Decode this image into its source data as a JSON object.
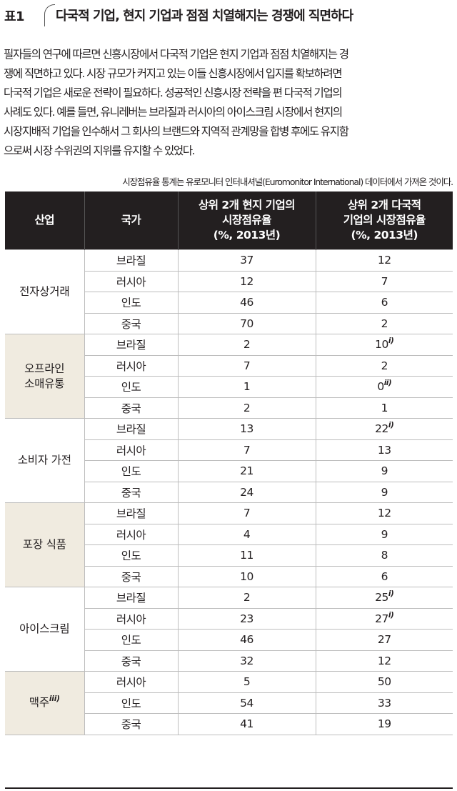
{
  "header": {
    "label": "표1",
    "title": "다국적 기업, 현지 기업과 점점 치열해지는 경쟁에 직면하다"
  },
  "intro_lines": [
    "필자들의 연구에 따르면 신흥시장에서 다국적 기업은 현지 기업과 점점 치열해지는 경",
    "쟁에 직면하고 있다. 시장 규모가 커지고 있는 이들 신흥시장에서 입지를 확보하려면",
    "다국적 기업은 새로운 전략이 필요하다. 성공적인 신흥시장 전략을 편 다국적 기업의",
    "사례도 있다. 예를 들면, 유니레버는 브라질과 러시아의 아이스크림 시장에서 현지의",
    "시장지배적 기업을 인수해서 그 회사의 브랜드와 지역적 관계망을 합병 후에도 유지함",
    "으로써 시장 수위권의 지위를 유지할 수 있었다."
  ],
  "source_note": "시장점유율 통계는 유로모니터 인터내셔널(Euromonitor International) 데이터에서 가져온 것이다.",
  "table": {
    "headers": {
      "industry": "산업",
      "country": "국가",
      "local": [
        "상위 2개 현지 기업의",
        "시장점유율",
        "(%, 2013년)"
      ],
      "multinational": [
        "상위 2개 다국적",
        "기업의 시장점유율",
        "(%, 2013년)"
      ]
    },
    "groups": [
      {
        "industry": [
          "전자상거래"
        ],
        "rows": [
          {
            "country": "브라질",
            "local": "37",
            "multi": "12"
          },
          {
            "country": "러시아",
            "local": "12",
            "multi": "7"
          },
          {
            "country": "인도",
            "local": "46",
            "multi": "6"
          },
          {
            "country": "중국",
            "local": "70",
            "multi": "2"
          }
        ]
      },
      {
        "industry": [
          "오프라인",
          "소매유통"
        ],
        "rows": [
          {
            "country": "브라질",
            "local": "2",
            "multi": "10",
            "multi_note": "i)"
          },
          {
            "country": "러시아",
            "local": "7",
            "multi": "2"
          },
          {
            "country": "인도",
            "local": "1",
            "multi": "0",
            "multi_note": "ii)"
          },
          {
            "country": "중국",
            "local": "2",
            "multi": "1"
          }
        ]
      },
      {
        "industry": [
          "소비자 가전"
        ],
        "rows": [
          {
            "country": "브라질",
            "local": "13",
            "multi": "22",
            "multi_note": "i)"
          },
          {
            "country": "러시아",
            "local": "7",
            "multi": "13"
          },
          {
            "country": "인도",
            "local": "21",
            "multi": "9"
          },
          {
            "country": "중국",
            "local": "24",
            "multi": "9"
          }
        ]
      },
      {
        "industry": [
          "포장 식품"
        ],
        "rows": [
          {
            "country": "브라질",
            "local": "7",
            "multi": "12"
          },
          {
            "country": "러시아",
            "local": "4",
            "multi": "9"
          },
          {
            "country": "인도",
            "local": "11",
            "multi": "8"
          },
          {
            "country": "중국",
            "local": "10",
            "multi": "6"
          }
        ]
      },
      {
        "industry": [
          "아이스크림"
        ],
        "rows": [
          {
            "country": "브라질",
            "local": "2",
            "multi": "25",
            "multi_note": "i)"
          },
          {
            "country": "러시아",
            "local": "23",
            "multi": "27",
            "multi_note": "i)"
          },
          {
            "country": "인도",
            "local": "46",
            "multi": "27"
          },
          {
            "country": "중국",
            "local": "32",
            "multi": "12"
          }
        ]
      },
      {
        "industry": [
          "맥주"
        ],
        "industry_note": "iii)",
        "rows": [
          {
            "country": "러시아",
            "local": "5",
            "multi": "50"
          },
          {
            "country": "인도",
            "local": "54",
            "multi": "33"
          },
          {
            "country": "중국",
            "local": "41",
            "multi": "19"
          }
        ]
      }
    ]
  }
}
